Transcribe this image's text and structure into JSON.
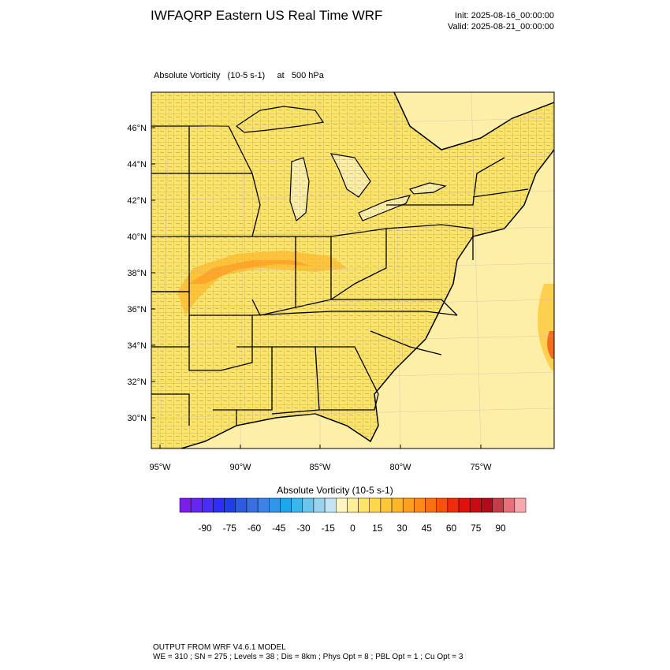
{
  "header": {
    "title": "IWFAQRP Eastern US Real Time WRF",
    "init": "Init: 2025-08-16_00:00:00",
    "valid": "Valid: 2025-08-21_00:00:00"
  },
  "field": {
    "label": "Absolute Vorticity   (10-5 s-1)     at   500 hPa"
  },
  "map": {
    "lat_labels": [
      "46°N",
      "44°N",
      "42°N",
      "40°N",
      "38°N",
      "36°N",
      "34°N",
      "32°N",
      "30°N"
    ],
    "lon_labels": [
      "95°W",
      "90°W",
      "85°W",
      "80°W",
      "75°W"
    ],
    "fill_color": "#fde46a",
    "ocean_color": "#fdeea8"
  },
  "colorbar": {
    "title": "Absolute Vorticity  (10-5 s-1)",
    "tick_labels": [
      "-90",
      "-75",
      "-60",
      "-45",
      "-30",
      "-15",
      "0",
      "15",
      "30",
      "45",
      "60",
      "75",
      "90"
    ],
    "colors": [
      "#7a1fe8",
      "#6426f0",
      "#4b2ef5",
      "#2e2ef8",
      "#1f3ee8",
      "#2e5ae0",
      "#3a6fe0",
      "#3f82e6",
      "#2f96ea",
      "#1aa8ea",
      "#3ab6ea",
      "#6cc5ea",
      "#9ad3ee",
      "#c4e3f3",
      "#fff5c2",
      "#ffee9a",
      "#fde46a",
      "#fdd84a",
      "#fdc838",
      "#fdb62a",
      "#fda020",
      "#fd8a18",
      "#f87012",
      "#f5520e",
      "#ef2c0c",
      "#e0100c",
      "#c80c14",
      "#b00c1c",
      "#c43c48",
      "#e6707a",
      "#f7a7ae"
    ]
  },
  "footer": {
    "line1": "OUTPUT FROM WRF V4.6.1 MODEL",
    "line2": "WE = 310 ; SN = 275 ; Levels = 38 ; Dis = 8km ; Phys Opt = 8 ; PBL Opt = 1 ; Cu Opt = 3"
  }
}
